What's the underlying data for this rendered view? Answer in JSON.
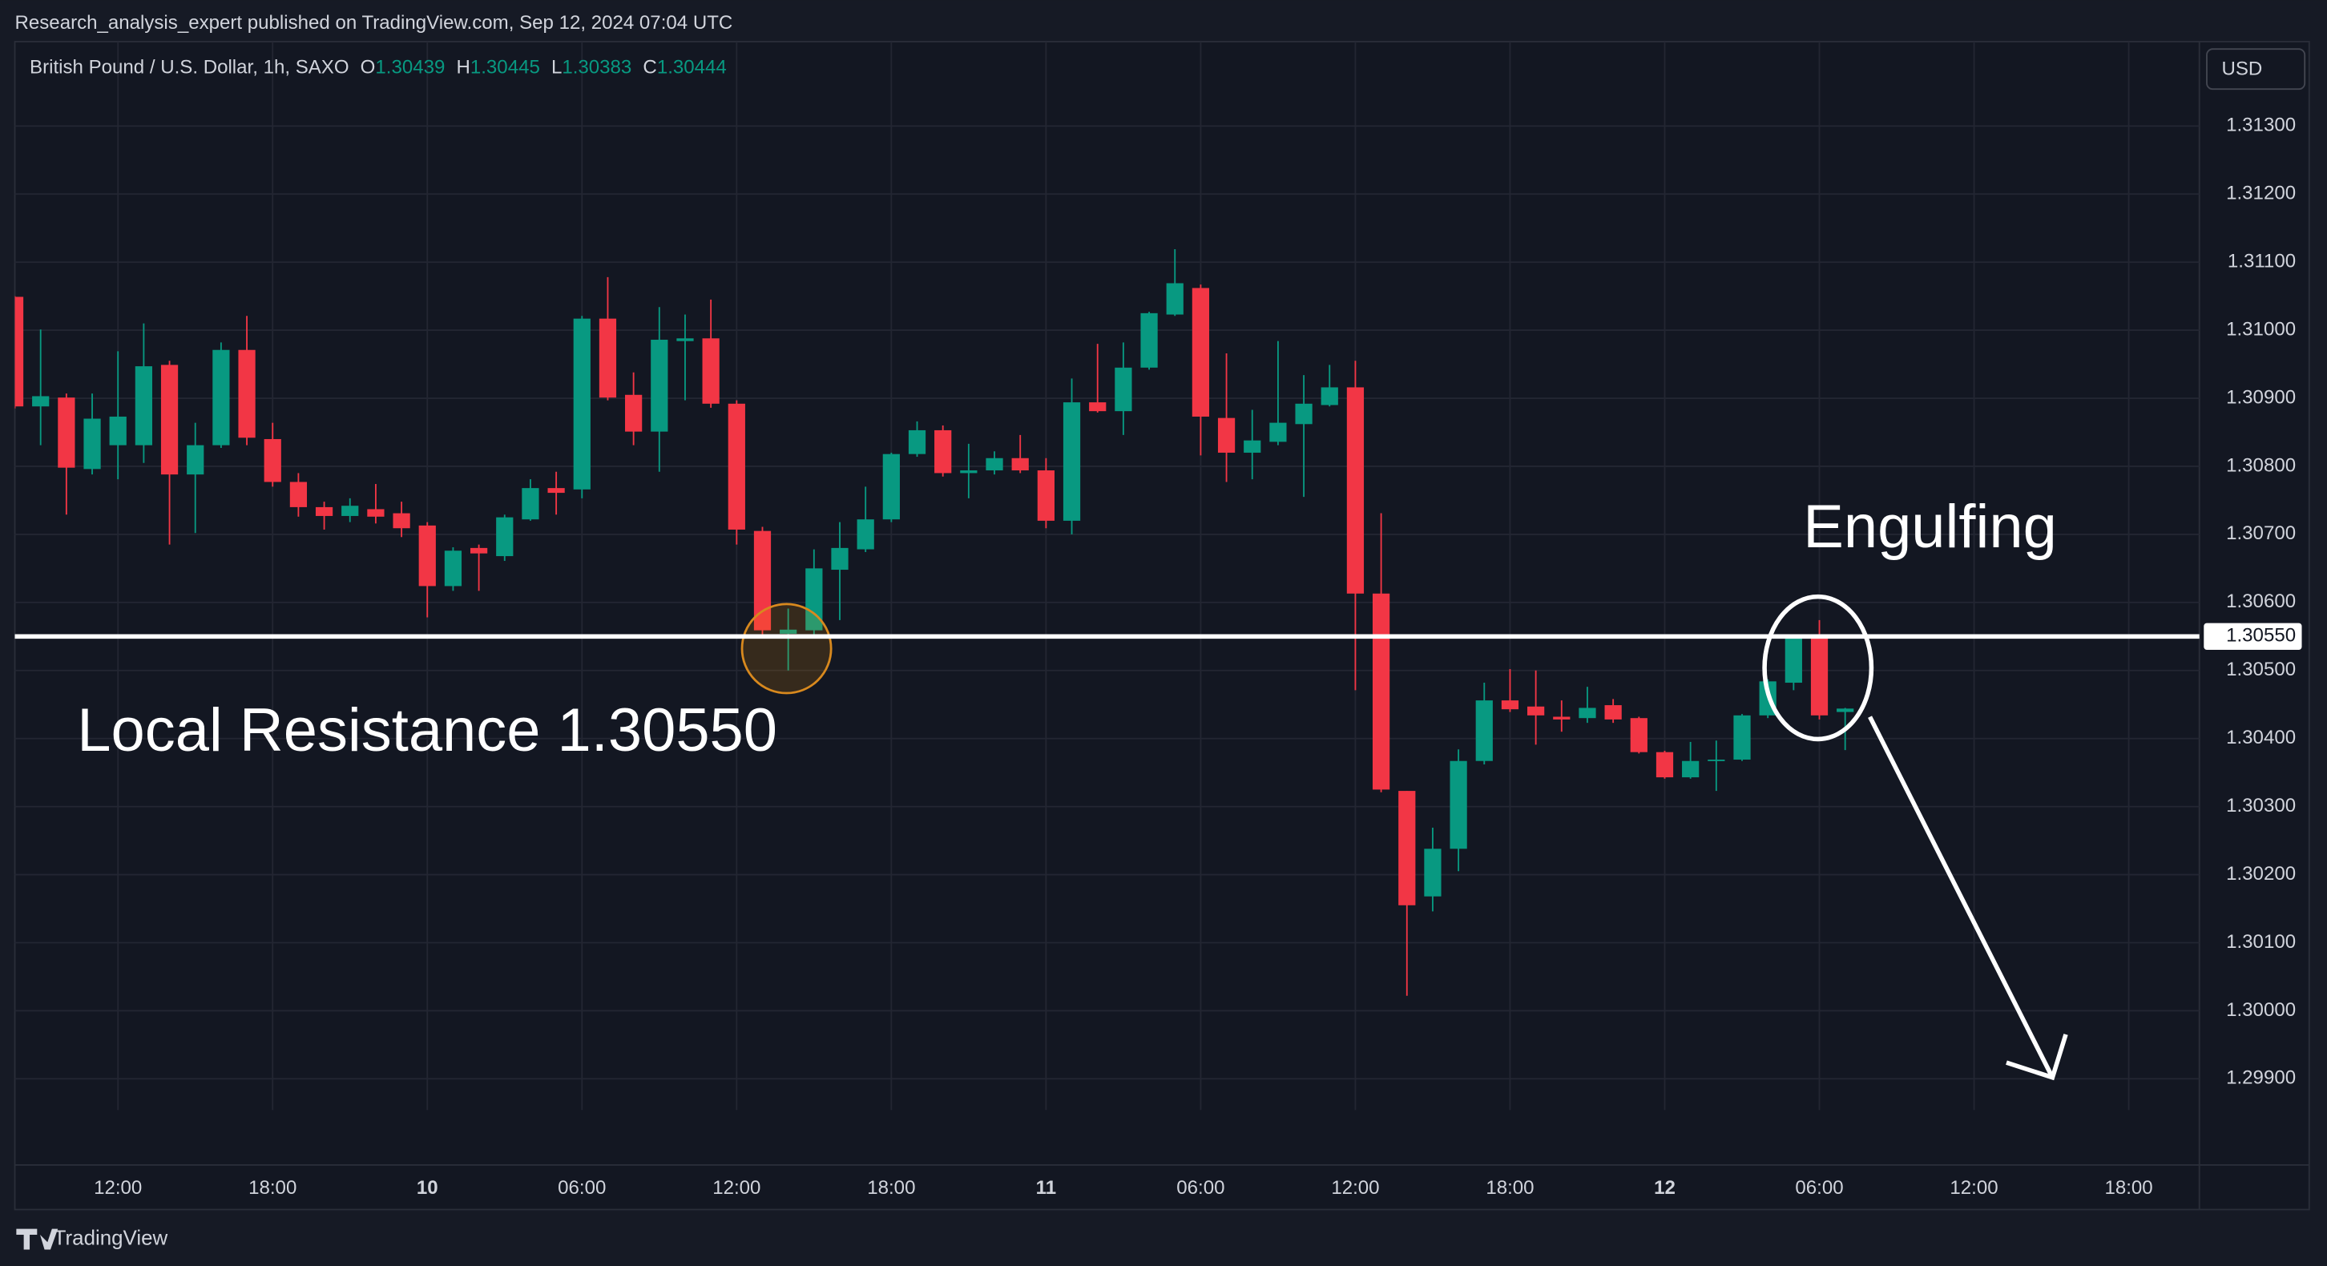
{
  "published": "Research_analysis_expert published on TradingView.com, Sep 12, 2024 07:04 UTC",
  "brand": "TradingView",
  "chart_data": {
    "type": "candlestick",
    "title": "British Pound / U.S. Dollar, 1h, SAXO",
    "ohlc_prefixes": [
      "O",
      "H",
      "L",
      "C"
    ],
    "currency": "USD",
    "up_color": "#089981",
    "down_color": "#f23645",
    "grid": true,
    "x": [
      -16,
      -15,
      -14,
      -13,
      -12,
      -11,
      -10,
      -9,
      -8,
      -7,
      -6,
      -5,
      -4,
      -3,
      -2,
      -1,
      0,
      1,
      2,
      3,
      4,
      5,
      6,
      7,
      8,
      9,
      10,
      11,
      12,
      13,
      14,
      15,
      16,
      17,
      18,
      19,
      20,
      21,
      22,
      23,
      24,
      25,
      26,
      27,
      28,
      29,
      30,
      31,
      32,
      33,
      34,
      35,
      36,
      37,
      38,
      39,
      40,
      41,
      42,
      43,
      44,
      45,
      46,
      47,
      48,
      49,
      50,
      51,
      52,
      53,
      54,
      55
    ],
    "open": [
      1.31049,
      1.30888,
      1.30901,
      1.30796,
      1.30831,
      1.30831,
      1.30949,
      1.30788,
      1.30831,
      1.30971,
      1.3084,
      1.30777,
      1.3074,
      1.30727,
      1.30737,
      1.30731,
      1.30713,
      1.30624,
      1.3068,
      1.30668,
      1.30722,
      1.30768,
      1.30766,
      1.31017,
      1.30905,
      1.30851,
      1.30984,
      1.30988,
      1.30892,
      1.30705,
      1.30554,
      1.30559,
      1.30648,
      1.30678,
      1.30722,
      1.30818,
      1.30853,
      1.3079,
      1.30794,
      1.30812,
      1.30794,
      1.3072,
      1.30894,
      1.30881,
      1.30945,
      1.31023,
      1.31062,
      1.30871,
      1.3082,
      1.30836,
      1.30862,
      1.3089,
      1.30916,
      1.30613,
      1.30323,
      1.30168,
      1.30238,
      1.30367,
      1.30456,
      1.30447,
      1.30432,
      1.3043,
      1.30449,
      1.3043,
      1.3038,
      1.30343,
      1.30367,
      1.30369,
      1.30434,
      1.30482,
      1.30548,
      1.30439
    ],
    "high": [
      1.3105,
      1.31001,
      1.30907,
      1.30907,
      1.30969,
      1.3101,
      1.30955,
      1.30864,
      1.30982,
      1.31021,
      1.30864,
      1.3079,
      1.30748,
      1.30753,
      1.30774,
      1.30748,
      1.30718,
      1.30681,
      1.30685,
      1.30729,
      1.30781,
      1.30792,
      1.31021,
      1.31078,
      1.30938,
      1.31034,
      1.31023,
      1.31045,
      1.30897,
      1.30711,
      1.30591,
      1.30678,
      1.30718,
      1.3077,
      1.3082,
      1.30866,
      1.3086,
      1.30833,
      1.30822,
      1.30846,
      1.30812,
      1.30929,
      1.3098,
      1.30982,
      1.31027,
      1.31119,
      1.31067,
      1.30966,
      1.30883,
      1.30984,
      1.30934,
      1.30949,
      1.30955,
      1.30731,
      1.30323,
      1.30269,
      1.30384,
      1.30482,
      1.30502,
      1.305,
      1.30456,
      1.30476,
      1.30458,
      1.30432,
      1.30382,
      1.30395,
      1.30397,
      1.30436,
      1.30487,
      1.30548,
      1.30574,
      1.30445
    ],
    "low": [
      1.30885,
      1.30831,
      1.30729,
      1.30788,
      1.30781,
      1.30805,
      1.30685,
      1.30702,
      1.30827,
      1.30831,
      1.3077,
      1.30726,
      1.30707,
      1.30718,
      1.30716,
      1.30696,
      1.30578,
      1.30617,
      1.30617,
      1.30661,
      1.3072,
      1.30729,
      1.30753,
      1.30897,
      1.30831,
      1.30792,
      1.30897,
      1.30886,
      1.30685,
      1.30552,
      1.305,
      1.30548,
      1.30574,
      1.30674,
      1.30718,
      1.30814,
      1.30785,
      1.30753,
      1.30788,
      1.3079,
      1.30709,
      1.307,
      1.30879,
      1.30846,
      1.30942,
      1.31021,
      1.30816,
      1.30777,
      1.30781,
      1.30831,
      1.30755,
      1.30888,
      1.30471,
      1.30321,
      1.30022,
      1.30146,
      1.30205,
      1.30362,
      1.30439,
      1.30391,
      1.3041,
      1.30423,
      1.30423,
      1.30378,
      1.30341,
      1.30341,
      1.30323,
      1.30367,
      1.3043,
      1.30471,
      1.30428,
      1.30383
    ],
    "close": [
      1.30888,
      1.30903,
      1.30798,
      1.3087,
      1.30873,
      1.30947,
      1.30788,
      1.30831,
      1.30971,
      1.30842,
      1.30777,
      1.3074,
      1.30727,
      1.30742,
      1.30726,
      1.30709,
      1.30624,
      1.30676,
      1.30672,
      1.30725,
      1.30768,
      1.30761,
      1.31017,
      1.30901,
      1.30851,
      1.30986,
      1.30988,
      1.30892,
      1.30707,
      1.30559,
      1.3056,
      1.3065,
      1.3068,
      1.30722,
      1.30818,
      1.30853,
      1.3079,
      1.30794,
      1.30812,
      1.30794,
      1.3072,
      1.30894,
      1.30881,
      1.30945,
      1.31025,
      1.31069,
      1.30873,
      1.3082,
      1.30838,
      1.30864,
      1.30892,
      1.30916,
      1.30613,
      1.30325,
      1.30155,
      1.30238,
      1.30367,
      1.30456,
      1.30443,
      1.30434,
      1.30428,
      1.30445,
      1.30428,
      1.3038,
      1.30343,
      1.30367,
      1.30369,
      1.30434,
      1.30484,
      1.30548,
      1.30434,
      1.30444
    ],
    "xlim": [
      -16,
      68.74
    ],
    "xticks": [
      {
        "value": -12,
        "label": "12:00"
      },
      {
        "value": -6,
        "label": "18:00"
      },
      {
        "value": 0,
        "label": "10"
      },
      {
        "value": 6,
        "label": "06:00"
      },
      {
        "value": 12,
        "label": "12:00"
      },
      {
        "value": 18,
        "label": "18:00"
      },
      {
        "value": 24,
        "label": "11"
      },
      {
        "value": 30,
        "label": "06:00"
      },
      {
        "value": 36,
        "label": "12:00"
      },
      {
        "value": 42,
        "label": "18:00"
      },
      {
        "value": 48,
        "label": "12"
      },
      {
        "value": 54,
        "label": "06:00"
      },
      {
        "value": 60,
        "label": "12:00"
      },
      {
        "value": 66,
        "label": "18:00"
      }
    ],
    "ylim": [
      1.29854,
      1.31424
    ],
    "yticks": [
      {
        "value": 1.313,
        "label": "1.31300"
      },
      {
        "value": 1.312,
        "label": "1.31200"
      },
      {
        "value": 1.311,
        "label": "1.31100"
      },
      {
        "value": 1.31,
        "label": "1.31000"
      },
      {
        "value": 1.309,
        "label": "1.30900"
      },
      {
        "value": 1.308,
        "label": "1.30800"
      },
      {
        "value": 1.307,
        "label": "1.30700"
      },
      {
        "value": 1.306,
        "label": "1.30600"
      },
      {
        "value": 1.305,
        "label": "1.30500"
      },
      {
        "value": 1.304,
        "label": "1.30400"
      },
      {
        "value": 1.303,
        "label": "1.30300"
      },
      {
        "value": 1.302,
        "label": "1.30200"
      },
      {
        "value": 1.301,
        "label": "1.30100"
      },
      {
        "value": 1.3,
        "label": "1.30000"
      },
      {
        "value": 1.299,
        "label": "1.29900"
      }
    ],
    "resistance": {
      "value": 1.3055,
      "label": "1.30550"
    },
    "annotations": [
      "Local Resistance 1.30550",
      "Engulfing"
    ]
  }
}
